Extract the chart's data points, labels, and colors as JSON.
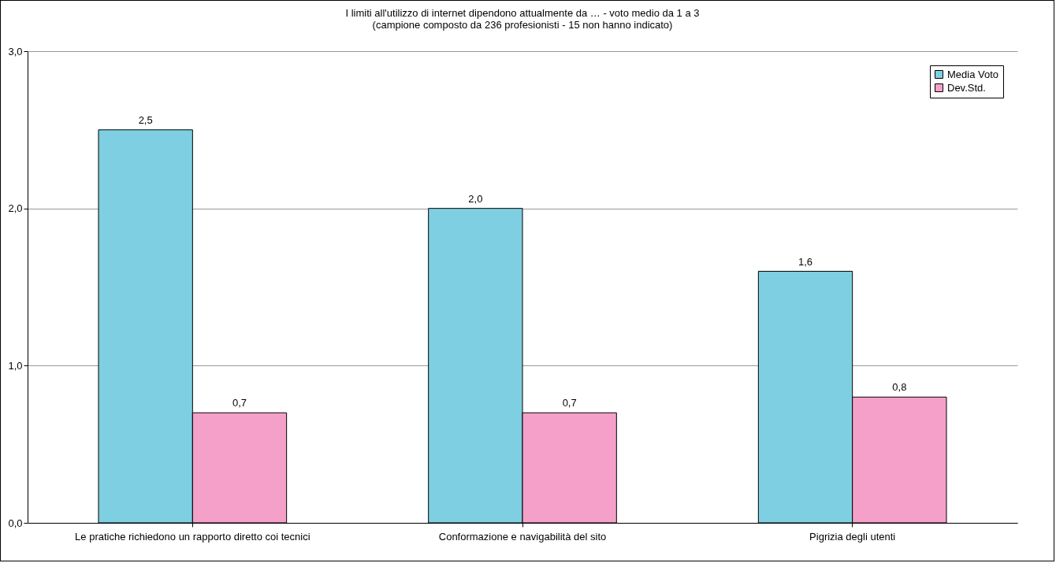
{
  "chart_data": {
    "type": "bar",
    "title": [
      "I limiti all'utilizzo di internet dipendono attualmente da … - voto medio da 1 a 3",
      "(campione composto da 236 profesionisti - 15 non hanno indicato)"
    ],
    "categories": [
      "Le pratiche richiedono un rapporto diretto coi tecnici",
      "Conformazione e navigabilità del sito",
      "Pigrizia degli utenti"
    ],
    "series": [
      {
        "name": "Media Voto",
        "color": "#7ecfe1",
        "values": [
          2.5,
          2.0,
          1.6
        ],
        "value_labels": [
          "2,5",
          "2,0",
          "1,6"
        ]
      },
      {
        "name": "Dev.Std.",
        "color": "#f4a0c9",
        "values": [
          0.7,
          0.7,
          0.8
        ],
        "value_labels": [
          "0,7",
          "0,7",
          "0,8"
        ]
      }
    ],
    "ylim": [
      0,
      3
    ],
    "yticks": [
      {
        "value": 0,
        "label": "0,0"
      },
      {
        "value": 1,
        "label": "1,0"
      },
      {
        "value": 2,
        "label": "2,0"
      },
      {
        "value": 3,
        "label": "3,0"
      }
    ],
    "grid": "y",
    "legend": "top right"
  }
}
